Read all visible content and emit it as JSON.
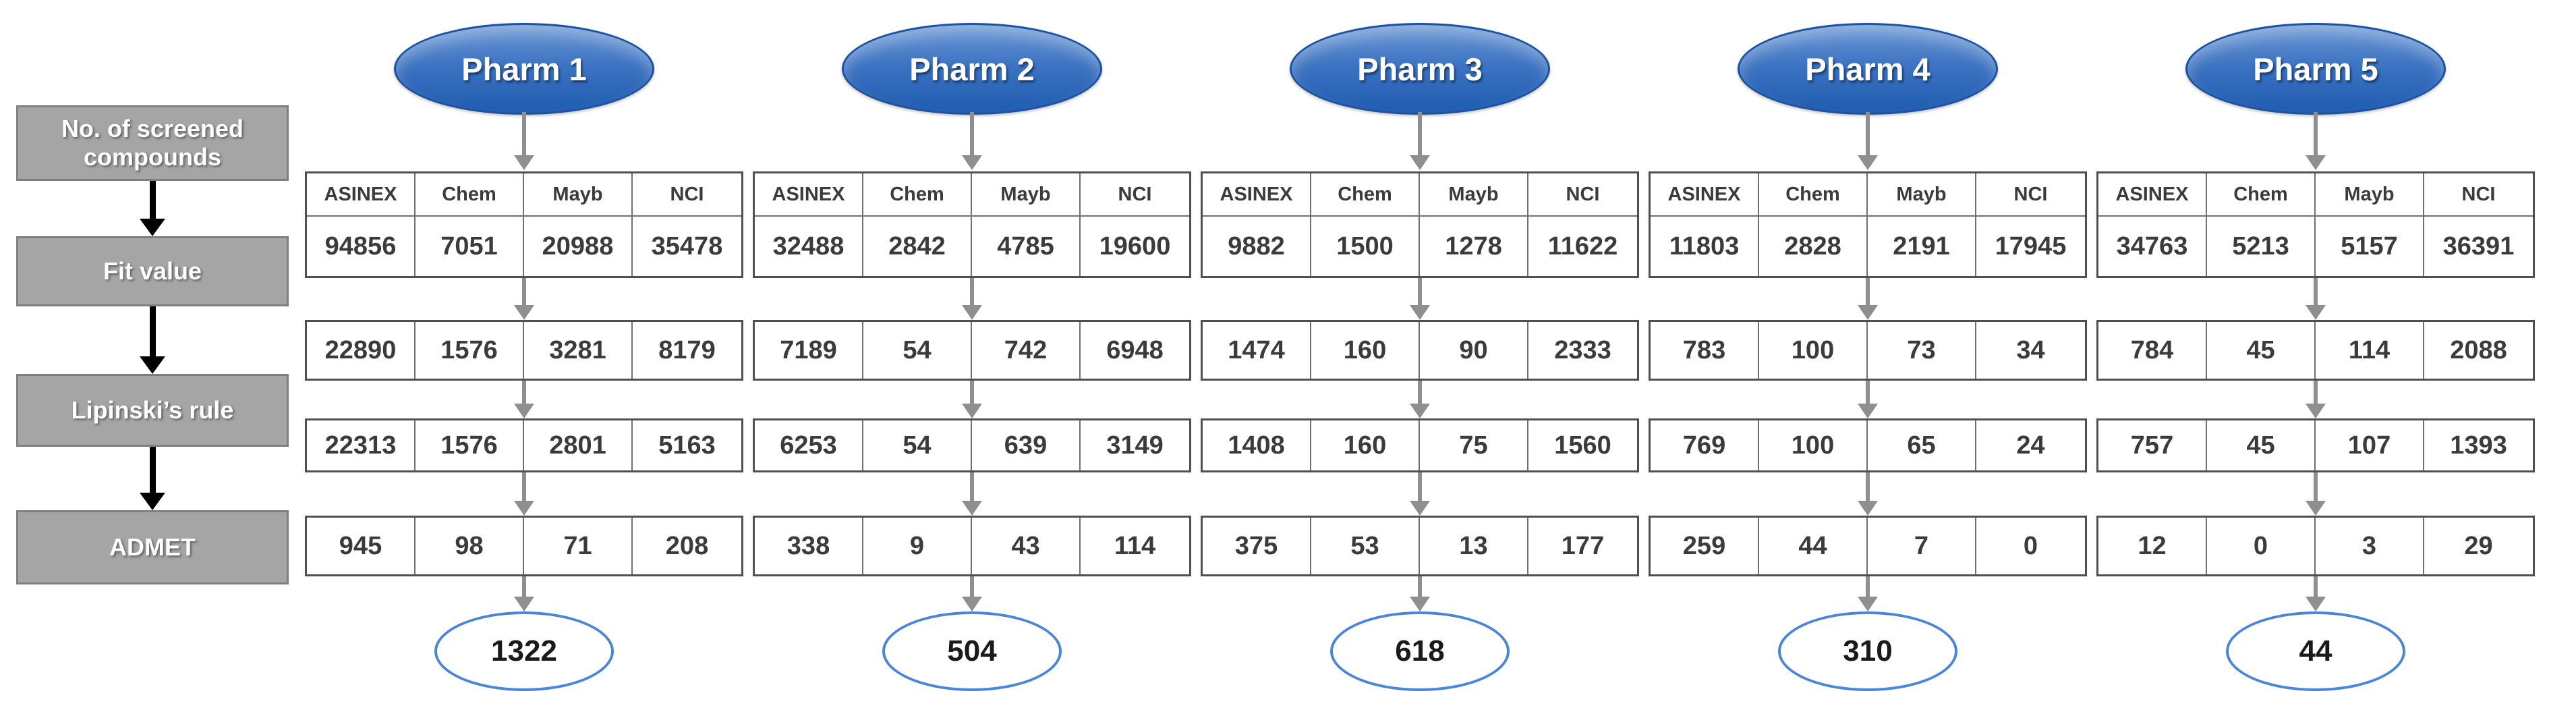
{
  "sidebar": {
    "steps": [
      "No. of screened compounds",
      "Fit value",
      "Lipinski’s rule",
      "ADMET"
    ]
  },
  "db_headers": [
    "ASINEX",
    "Chem",
    "Mayb",
    "NCI"
  ],
  "pharms": [
    {
      "name": "Pharm 1",
      "screened": [
        94856,
        7051,
        20988,
        35478
      ],
      "fit": [
        22890,
        1576,
        3281,
        8179
      ],
      "lipinski": [
        22313,
        1576,
        2801,
        5163
      ],
      "admet": [
        945,
        98,
        71,
        208
      ],
      "total": 1322
    },
    {
      "name": "Pharm 2",
      "screened": [
        32488,
        2842,
        4785,
        19600
      ],
      "fit": [
        7189,
        54,
        742,
        6948
      ],
      "lipinski": [
        6253,
        54,
        639,
        3149
      ],
      "admet": [
        338,
        9,
        43,
        114
      ],
      "total": 504
    },
    {
      "name": "Pharm 3",
      "screened": [
        9882,
        1500,
        1278,
        11622
      ],
      "fit": [
        1474,
        160,
        90,
        2333
      ],
      "lipinski": [
        1408,
        160,
        75,
        1560
      ],
      "admet": [
        375,
        53,
        13,
        177
      ],
      "total": 618
    },
    {
      "name": "Pharm 4",
      "screened": [
        11803,
        2828,
        2191,
        17945
      ],
      "fit": [
        783,
        100,
        73,
        34
      ],
      "lipinski": [
        769,
        100,
        65,
        24
      ],
      "admet": [
        259,
        44,
        7,
        0
      ],
      "total": 310
    },
    {
      "name": "Pharm 5",
      "screened": [
        34763,
        5213,
        5157,
        36391
      ],
      "fit": [
        784,
        45,
        114,
        2088
      ],
      "lipinski": [
        757,
        45,
        107,
        1393
      ],
      "admet": [
        12,
        0,
        3,
        29
      ],
      "total": 44
    }
  ],
  "colors": {
    "pharm_node_top": "#6d98d4",
    "pharm_node_bottom": "#1e5bb0",
    "pharm_node_border": "#1d52a0",
    "final_node_border": "#4a86d8",
    "step_box_fill": "#a5a5a5",
    "step_box_border": "#7f7f7f",
    "arrow_gray": "#8f8f8f",
    "arrow_black": "#000000",
    "table_border": "#4f4f4f",
    "value_text": "#3b3b3b"
  }
}
